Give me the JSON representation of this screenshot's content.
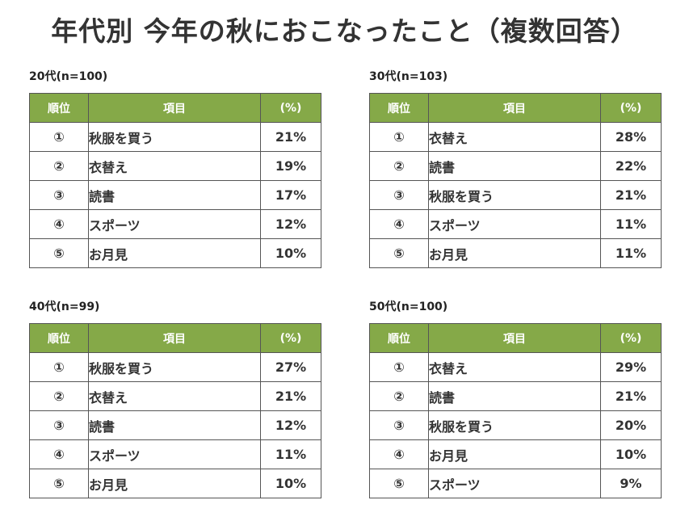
{
  "title": "年代別 今年の秋におこなったこと（複数回答）",
  "headers": {
    "rank": "順位",
    "item": "項目",
    "percent": "(%)"
  },
  "tables": [
    {
      "caption": "20代(n=100)",
      "rows": [
        {
          "rank": "①",
          "item": "秋服を買う",
          "percent": "21%"
        },
        {
          "rank": "②",
          "item": "衣替え",
          "percent": "19%"
        },
        {
          "rank": "③",
          "item": "読書",
          "percent": "17%"
        },
        {
          "rank": "④",
          "item": "スポーツ",
          "percent": "12%"
        },
        {
          "rank": "⑤",
          "item": "お月見",
          "percent": "10%"
        }
      ]
    },
    {
      "caption": "30代(n=103)",
      "rows": [
        {
          "rank": "①",
          "item": "衣替え",
          "percent": "28%"
        },
        {
          "rank": "②",
          "item": "読書",
          "percent": "22%"
        },
        {
          "rank": "③",
          "item": "秋服を買う",
          "percent": "21%"
        },
        {
          "rank": "④",
          "item": "スポーツ",
          "percent": "11%"
        },
        {
          "rank": "⑤",
          "item": "お月見",
          "percent": "11%"
        }
      ]
    },
    {
      "caption": "40代(n=99)",
      "rows": [
        {
          "rank": "①",
          "item": "秋服を買う",
          "percent": "27%"
        },
        {
          "rank": "②",
          "item": "衣替え",
          "percent": "21%"
        },
        {
          "rank": "③",
          "item": "読書",
          "percent": "12%"
        },
        {
          "rank": "④",
          "item": "スポーツ",
          "percent": "11%"
        },
        {
          "rank": "⑤",
          "item": "お月見",
          "percent": "10%"
        }
      ]
    },
    {
      "caption": "50代(n=100)",
      "rows": [
        {
          "rank": "①",
          "item": "衣替え",
          "percent": "29%"
        },
        {
          "rank": "②",
          "item": "読書",
          "percent": "21%"
        },
        {
          "rank": "③",
          "item": "秋服を買う",
          "percent": "20%"
        },
        {
          "rank": "④",
          "item": "お月見",
          "percent": "10%"
        },
        {
          "rank": "⑤",
          "item": "スポーツ",
          "percent": "9%"
        }
      ]
    }
  ],
  "colors": {
    "header_bg": "#85a948",
    "header_text": "#ffffff",
    "border": "#555555",
    "text": "#333333"
  }
}
